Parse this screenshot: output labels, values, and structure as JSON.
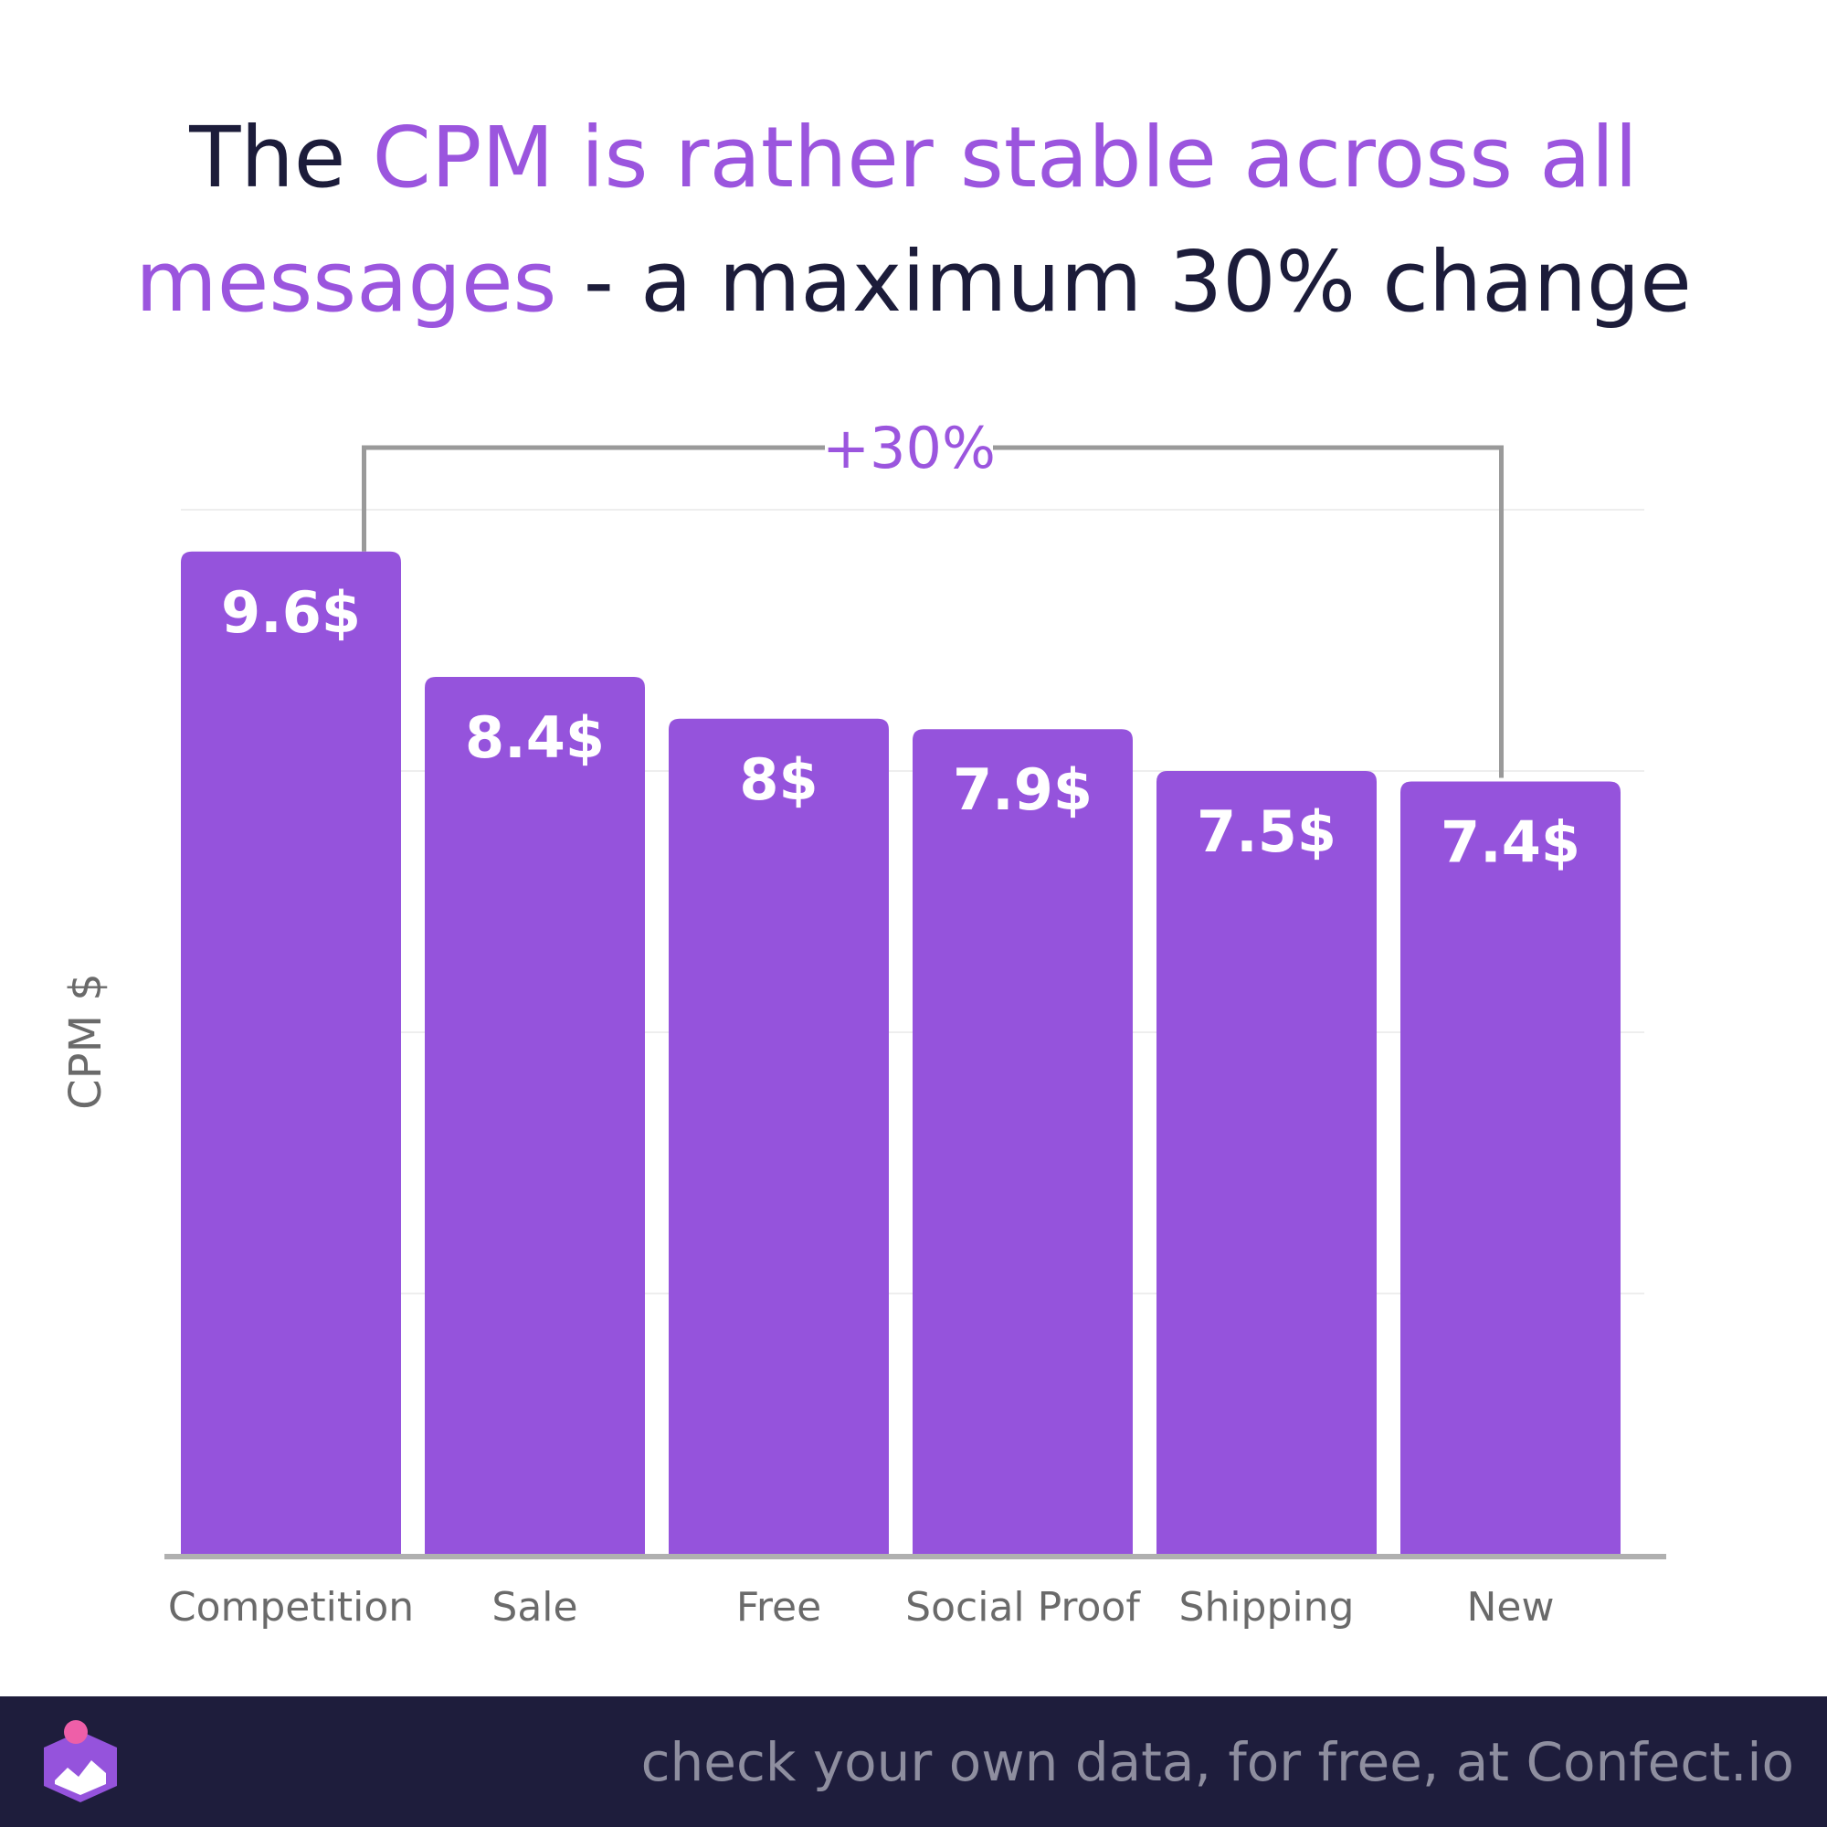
{
  "title": {
    "part1": "The ",
    "highlight1": "CPM is rather stable across all",
    "highlight2": "messages",
    "part2": " - a maximum 30% change"
  },
  "annotation": {
    "label": "+30%",
    "from": "Competition",
    "to": "New"
  },
  "colors": {
    "bar": "#9553dc",
    "accent": "#9b55de",
    "title_dark": "#1c1c3a",
    "axis": "#b0b0b0",
    "grid": "#eeeeee",
    "bracket": "#9a9a9a",
    "footer_bg": "#1e1d3c",
    "footer_text": "#8e8e9f",
    "tick_text": "#6a6a6a"
  },
  "chart_data": {
    "type": "bar",
    "categories": [
      "Competition",
      "Sale",
      "Free",
      "Social Proof",
      "Shipping",
      "New"
    ],
    "values": [
      9.6,
      8.4,
      8,
      7.9,
      7.5,
      7.4
    ],
    "value_labels": [
      "9.6$",
      "8.4$",
      "8$",
      "7.9$",
      "7.5$",
      "7.4$"
    ],
    "ylabel": "CPM $",
    "xlabel": "",
    "ylim": [
      0,
      10
    ],
    "grid": true,
    "gridlines": [
      2.5,
      5,
      7.5,
      10
    ]
  },
  "footer": {
    "text": "check your own data, for free, at Confect.io",
    "logo": "confect-logo-icon"
  }
}
